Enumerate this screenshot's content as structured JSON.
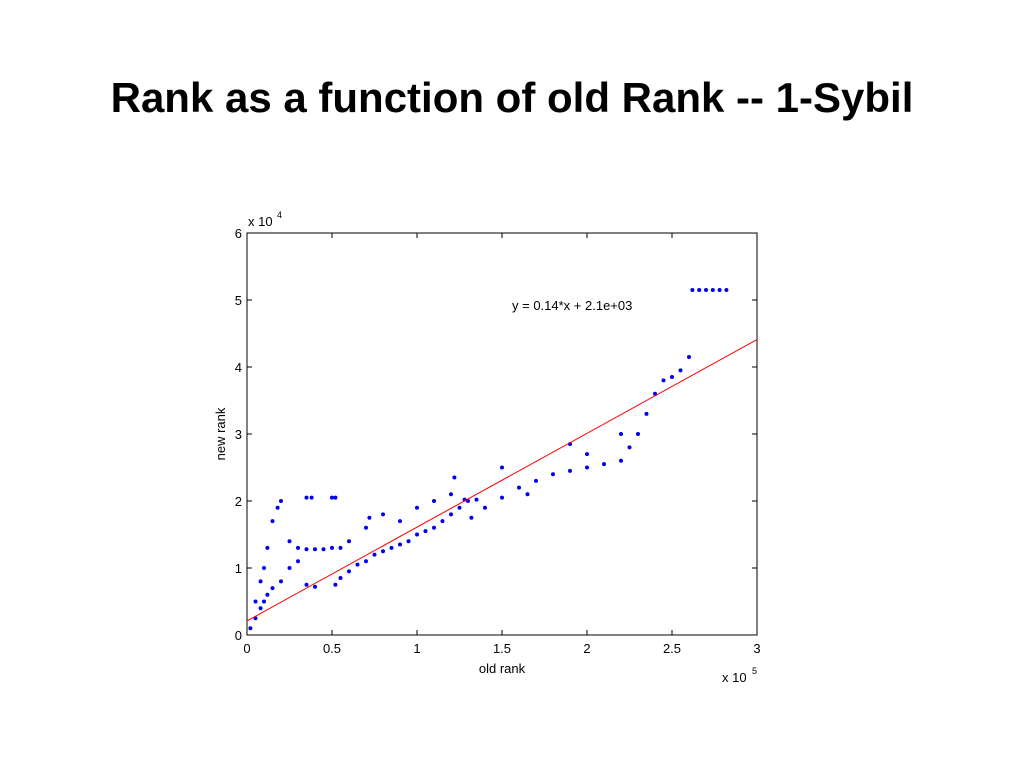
{
  "chart_data": {
    "type": "scatter",
    "title": "Rank as a function of old Rank  -- 1-Sybil",
    "x_label": "old rank",
    "y_label": "new rank",
    "x_multiplier": {
      "base": "x 10",
      "exponent": "5"
    },
    "y_multiplier": {
      "base": "x 10",
      "exponent": "4"
    },
    "xlim": [
      0,
      3
    ],
    "ylim": [
      0,
      6
    ],
    "xticks": [
      0,
      0.5,
      1,
      1.5,
      2,
      2.5,
      3
    ],
    "yticks": [
      0,
      1,
      2,
      3,
      4,
      5,
      6
    ],
    "color": "#0000ee",
    "x": [
      0.02,
      0.05,
      0.08,
      0.1,
      0.12,
      0.15,
      0.2,
      0.25,
      0.3,
      0.35,
      0.4,
      0.05,
      0.08,
      0.1,
      0.12,
      0.15,
      0.18,
      0.2,
      0.25,
      0.3,
      0.35,
      0.4,
      0.45,
      0.5,
      0.35,
      0.38,
      0.5,
      0.52,
      0.52,
      0.55,
      0.6,
      0.65,
      0.7,
      0.75,
      0.8,
      0.85,
      0.9,
      0.95,
      1.0,
      1.05,
      1.1,
      1.15,
      1.2,
      1.25,
      1.28,
      0.55,
      0.6,
      0.7,
      0.72,
      0.8,
      0.9,
      1.0,
      1.1,
      1.2,
      1.22,
      1.3,
      1.35,
      1.32,
      1.4,
      1.5,
      1.6,
      1.65,
      1.7,
      1.8,
      1.9,
      2.0,
      2.1,
      2.2,
      2.25,
      2.3,
      2.35,
      2.4,
      2.45,
      2.5,
      2.55,
      2.6,
      1.5,
      1.9,
      2.0,
      2.2,
      2.62,
      2.66,
      2.7,
      2.74,
      2.78,
      2.82
    ],
    "values": [
      0.1,
      0.25,
      0.4,
      0.5,
      0.6,
      0.7,
      0.8,
      1.0,
      1.1,
      0.75,
      0.72,
      0.5,
      0.8,
      1.0,
      1.3,
      1.7,
      1.9,
      2.0,
      1.4,
      1.3,
      1.28,
      1.28,
      1.28,
      1.3,
      2.05,
      2.05,
      2.05,
      2.05,
      0.75,
      0.85,
      0.95,
      1.05,
      1.1,
      1.2,
      1.25,
      1.3,
      1.35,
      1.4,
      1.5,
      1.55,
      1.6,
      1.7,
      1.8,
      1.9,
      2.02,
      1.3,
      1.4,
      1.6,
      1.75,
      1.8,
      1.7,
      1.9,
      2.0,
      2.1,
      2.35,
      2.0,
      2.02,
      1.75,
      1.9,
      2.05,
      2.2,
      2.1,
      2.3,
      2.4,
      2.45,
      2.5,
      2.55,
      2.6,
      2.8,
      3.0,
      3.3,
      3.6,
      3.8,
      3.85,
      3.95,
      4.15,
      2.5,
      2.85,
      2.7,
      3.0,
      5.15,
      5.15,
      5.15,
      5.15,
      5.15,
      5.15
    ],
    "fit": {
      "label": "y = 0.14*x + 2.1e+03",
      "color": "#ff0000",
      "x": [
        0,
        3
      ],
      "values": [
        0.21,
        4.41
      ]
    }
  }
}
